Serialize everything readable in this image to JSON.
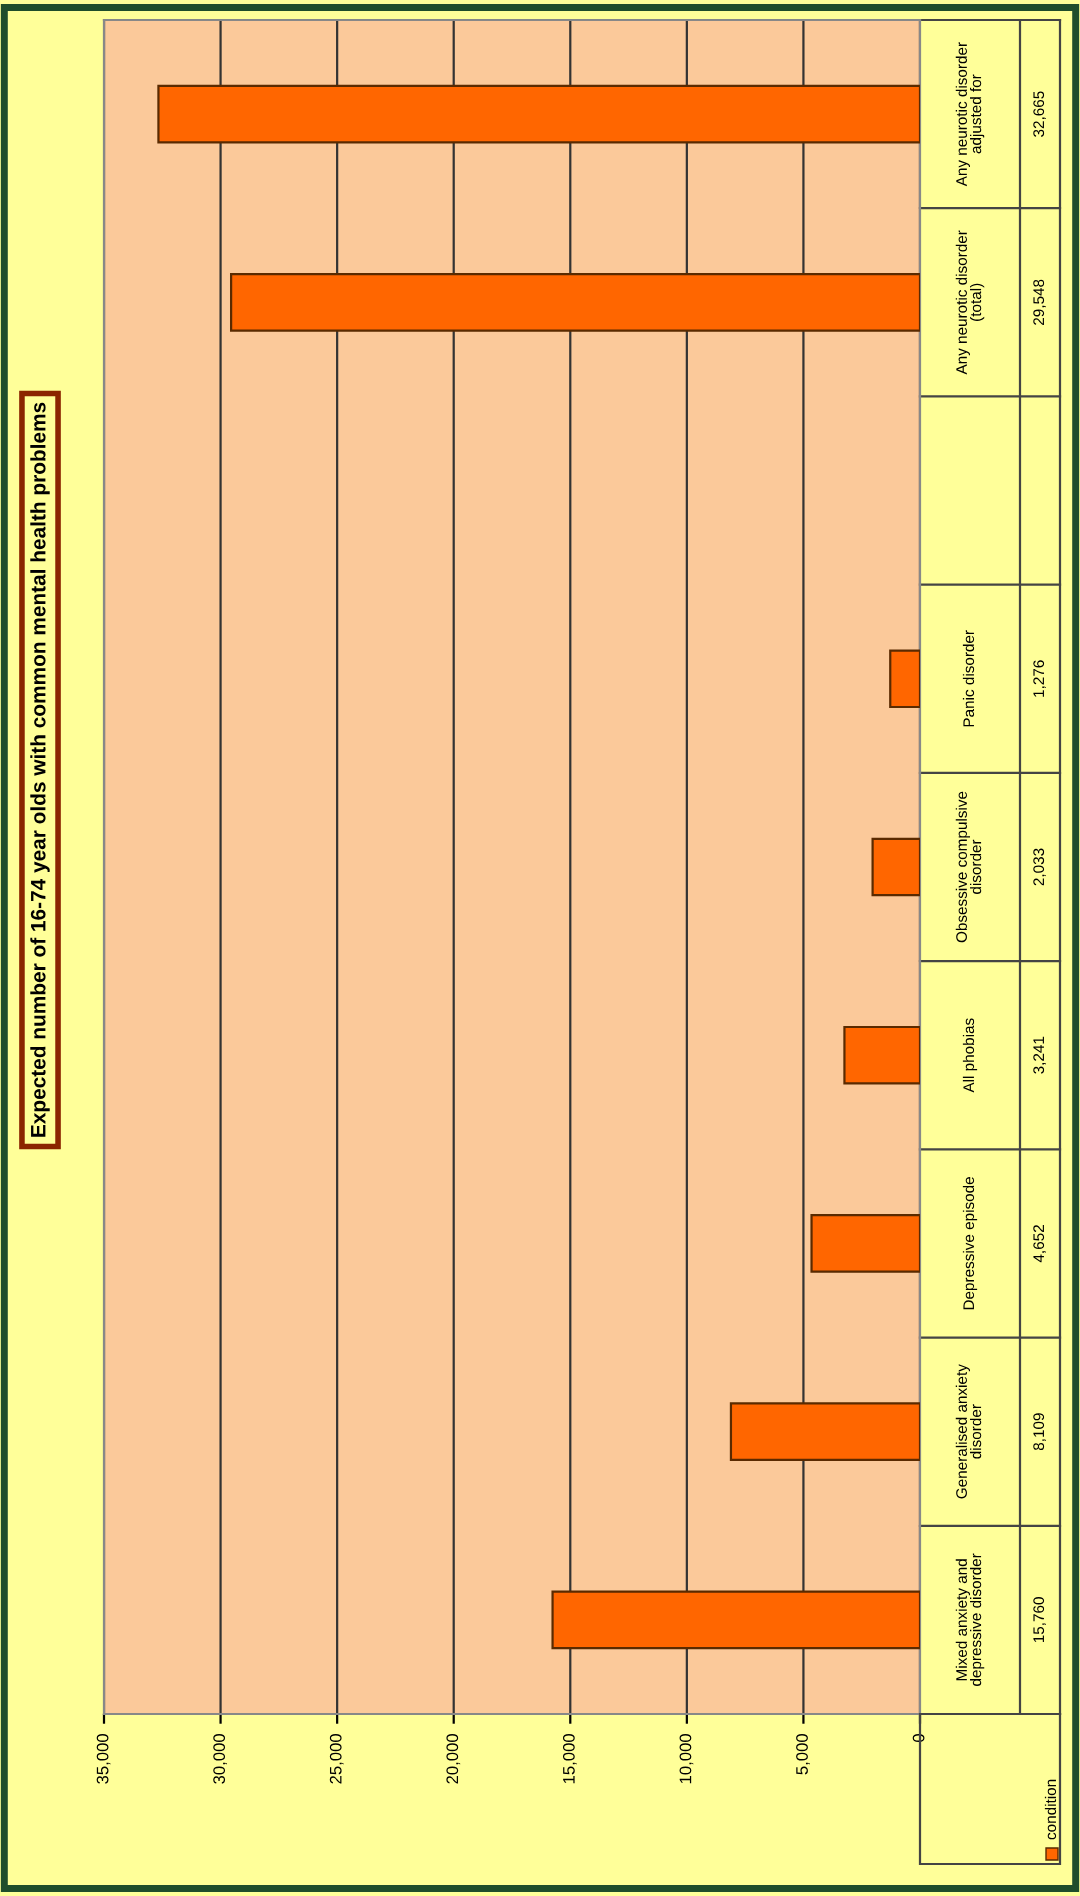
{
  "chart_data": {
    "type": "bar",
    "orientation": "horizontal",
    "title": "Expected number of 16-74 year olds with common mental health problems",
    "categories": [
      "Any neurotic disorder adjusted for",
      "Any neurotic disorder (total)",
      null,
      "Panic disorder",
      "Obsessive compulsive disorder",
      "All phobias",
      "Depressive episode",
      "Generalised anxiety disorder",
      "Mixed anxiety and depressive disorder"
    ],
    "series": [
      {
        "name": "condition",
        "color": "#ff6600",
        "values": [
          32665,
          29548,
          null,
          1276,
          2033,
          3241,
          4652,
          8109,
          15760
        ],
        "value_labels": [
          "32,665",
          "29,548",
          null,
          "1,276",
          "2,033",
          "3,241",
          "4,652",
          "8,109",
          "15,760"
        ]
      }
    ],
    "xlim": [
      35000,
      0
    ],
    "xticks": [
      {
        "value": 35000,
        "label": "35,000"
      },
      {
        "value": 30000,
        "label": "30,000"
      },
      {
        "value": 25000,
        "label": "25,000"
      },
      {
        "value": 20000,
        "label": "20,000"
      },
      {
        "value": 15000,
        "label": "15,000"
      },
      {
        "value": 10000,
        "label": "10,000"
      },
      {
        "value": 5000,
        "label": "5,000"
      },
      0
    ],
    "grid": "x",
    "legend": "bottom"
  }
}
